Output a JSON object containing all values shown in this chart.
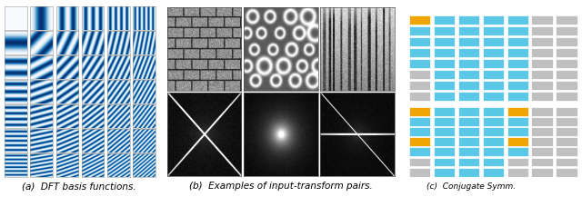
{
  "fig_width": 6.4,
  "fig_height": 2.17,
  "dpi": 100,
  "background_color": "#ffffff",
  "caption_a": "(a)  DFT basis functions.",
  "caption_b": "(b)  Examples of input-transform pairs.",
  "caption_c": "(c)  Conjugate Symm.",
  "caption_fontsize": 7.5,
  "grid_a_rows": 7,
  "grid_a_cols": 6,
  "blue_color": "#5BC8E8",
  "orange_color": "#F0A500",
  "gray_color": "#C0C0C0",
  "c1_top_pattern": [
    [
      2,
      1,
      1,
      1,
      1,
      0,
      0
    ],
    [
      1,
      1,
      1,
      1,
      1,
      0,
      0
    ],
    [
      1,
      1,
      1,
      1,
      1,
      0,
      0
    ],
    [
      1,
      1,
      1,
      1,
      1,
      0,
      0
    ],
    [
      1,
      1,
      1,
      1,
      1,
      0,
      0
    ],
    [
      0,
      1,
      1,
      1,
      1,
      0,
      0
    ],
    [
      0,
      1,
      1,
      1,
      1,
      0,
      0
    ],
    [
      0,
      1,
      1,
      1,
      1,
      0,
      0
    ]
  ],
  "c2_bottom_pattern": [
    [
      2,
      1,
      1,
      1,
      2,
      0,
      0
    ],
    [
      1,
      1,
      1,
      1,
      1,
      0,
      0
    ],
    [
      1,
      1,
      1,
      1,
      1,
      0,
      0
    ],
    [
      2,
      1,
      1,
      1,
      2,
      0,
      0
    ],
    [
      1,
      1,
      1,
      1,
      1,
      0,
      0
    ],
    [
      0,
      1,
      1,
      1,
      0,
      0,
      0
    ],
    [
      0,
      1,
      1,
      1,
      0,
      0,
      0
    ]
  ],
  "dft_freqs": [
    [
      0,
      0,
      1,
      0,
      2,
      0,
      3,
      0,
      4,
      0,
      5,
      0
    ],
    [
      0,
      1,
      1,
      1,
      2,
      1,
      3,
      1,
      4,
      1,
      5,
      1
    ],
    [
      0,
      2,
      1,
      2,
      2,
      2,
      3,
      2,
      4,
      2,
      5,
      2
    ],
    [
      0,
      3,
      1,
      3,
      2,
      3,
      3,
      3,
      4,
      3,
      5,
      3
    ],
    [
      0,
      4,
      1,
      4,
      2,
      4,
      3,
      4,
      4,
      4,
      5,
      4
    ],
    [
      0,
      5,
      1,
      5,
      2,
      5,
      3,
      5,
      4,
      5,
      5,
      5
    ],
    [
      0,
      6,
      1,
      6,
      2,
      6,
      3,
      6,
      4,
      6,
      5,
      6
    ]
  ]
}
